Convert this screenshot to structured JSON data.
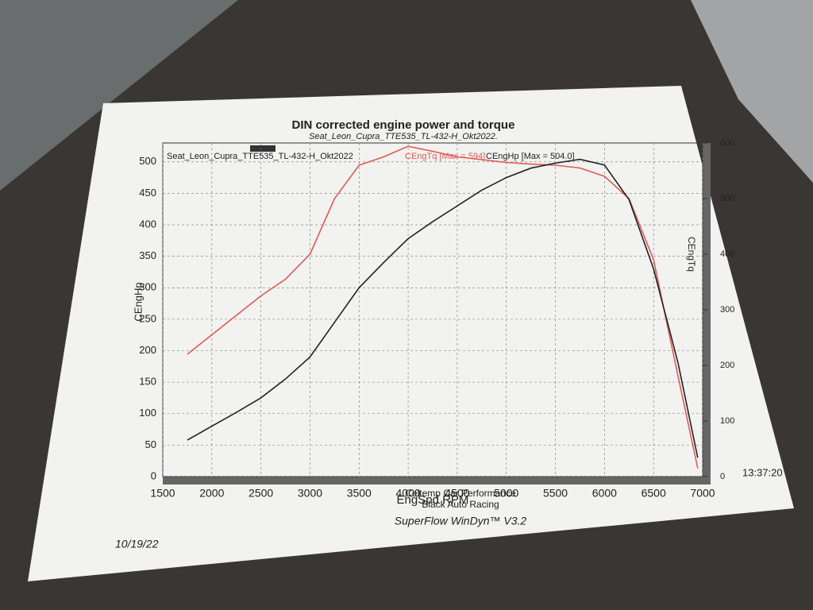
{
  "chart_data": {
    "type": "line",
    "title": "DIN corrected engine power and torque",
    "subtitle": "Seat_Leon_Cupra_TTE535_TL-432-H_Okt2022.",
    "run_label": "Seat_Leon_Cupra_TTE535_TL-432-H_Okt2022",
    "x_label": "EngSpd RPM",
    "y_label": "CEngHp",
    "y2_label": "CEngTq",
    "x": [
      1750,
      2000,
      2250,
      2500,
      2750,
      3000,
      3250,
      3500,
      3750,
      4000,
      4250,
      4500,
      4750,
      5000,
      5250,
      5500,
      5750,
      6000,
      6250,
      6500,
      6750,
      6950
    ],
    "series": [
      {
        "name": "CEngTq [Max = 594]",
        "color": "#e05a55",
        "axis": "y2",
        "values": [
          220,
          255,
          290,
          325,
          355,
          400,
          500,
          560,
          575,
          594,
          585,
          575,
          570,
          565,
          562,
          560,
          555,
          540,
          500,
          390,
          180,
          15
        ]
      },
      {
        "name": "CEngHp [Max = 504.0]",
        "color": "#222222",
        "values": [
          58,
          80,
          102,
          125,
          155,
          190,
          245,
          300,
          340,
          378,
          405,
          430,
          455,
          475,
          490,
          498,
          504,
          495,
          440,
          330,
          180,
          30
        ]
      }
    ],
    "xlim": [
      1500,
      7000
    ],
    "xticks": [
      1500,
      2000,
      2500,
      3000,
      3500,
      4000,
      4500,
      5000,
      5500,
      6000,
      6500,
      7000
    ],
    "ylim": [
      0,
      530
    ],
    "yticks": [
      0,
      50,
      100,
      150,
      200,
      250,
      300,
      350,
      400,
      450,
      500
    ],
    "y2lim": [
      0,
      600
    ],
    "y2ticks": [
      0,
      100,
      200,
      300,
      400,
      500,
      600
    ],
    "grid": true
  },
  "footer": {
    "line1": "Celtemp Car Performance",
    "line2": "Black Auto Racing",
    "software": "SuperFlow WinDyn™ V3.2",
    "date": "10/19/22",
    "time": "13:37:20"
  }
}
